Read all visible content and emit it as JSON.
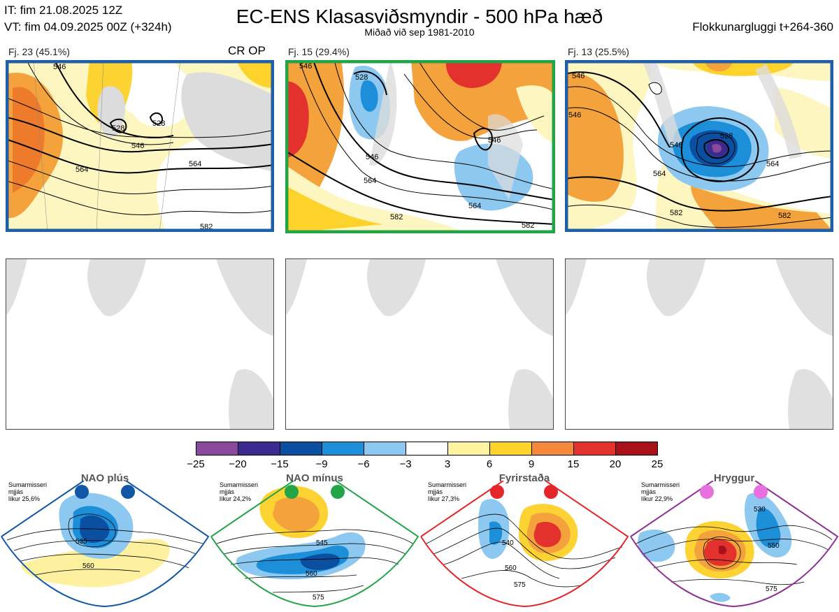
{
  "header": {
    "it_line": "IT: fim 21.08.2025 12Z",
    "vt_line": "VT: fim 04.09.2025 00Z  (+324h)",
    "title": "EC-ENS Klasasviðsmyndir - 500 hPa hæð",
    "subtitle": "Miðað við sep 1981-2010",
    "window": "Flokkunargluggi t+264-360"
  },
  "clusters": [
    {
      "label": "Fj. 23 (45.1%)",
      "tag": "CR OP",
      "frame_color": "#1f5ea8",
      "contours": [
        "528",
        "528",
        "546",
        "546",
        "564",
        "564",
        "582"
      ]
    },
    {
      "label": "Fj. 15 (29.4%)",
      "tag": "",
      "frame_color": "#22a447",
      "contours": [
        "528",
        "546",
        "546",
        "546",
        "564",
        "564",
        "582",
        "582"
      ]
    },
    {
      "label": "Fj. 13 (25.5%)",
      "tag": "",
      "frame_color": "#1f5ea8",
      "contours": [
        "528",
        "546",
        "546",
        "546",
        "564",
        "564",
        "582"
      ]
    }
  ],
  "colorbar": {
    "colors": [
      "#8a4a9c",
      "#3b2b8f",
      "#0a4fa0",
      "#1c8fd8",
      "#8cc8ef",
      "#ffffff",
      "#fff3a0",
      "#fcd22b",
      "#f5883a",
      "#e3312d",
      "#a8101a"
    ],
    "ticks": [
      "−25",
      "−20",
      "−15",
      "−9",
      "−6",
      "−3",
      "3",
      "6",
      "9",
      "15",
      "20",
      "25"
    ]
  },
  "regimes": [
    {
      "name": "NAO plús",
      "meta": [
        "Sumarmisseri",
        "mjjás",
        "líkur 25,6%"
      ],
      "color": "#1157a5",
      "contours": [
        "535",
        "560"
      ]
    },
    {
      "name": "NAO mínus",
      "meta": [
        "Sumarmisseri",
        "mjjás",
        "líkur 24,2%"
      ],
      "color": "#22a447",
      "contours": [
        "545",
        "560",
        "575"
      ]
    },
    {
      "name": "Fyrirstaða",
      "meta": [
        "Sumarmisseri",
        "mjjás",
        "líkur 27,3%"
      ],
      "color": "#e4262a",
      "contours": [
        "540",
        "560",
        "575"
      ]
    },
    {
      "name": "Hryggur",
      "meta": [
        "Sumarmisseri",
        "mjjás",
        "líkur 22,9%"
      ],
      "color": "#e86fe0",
      "contours": [
        "530",
        "550",
        "575"
      ]
    }
  ]
}
